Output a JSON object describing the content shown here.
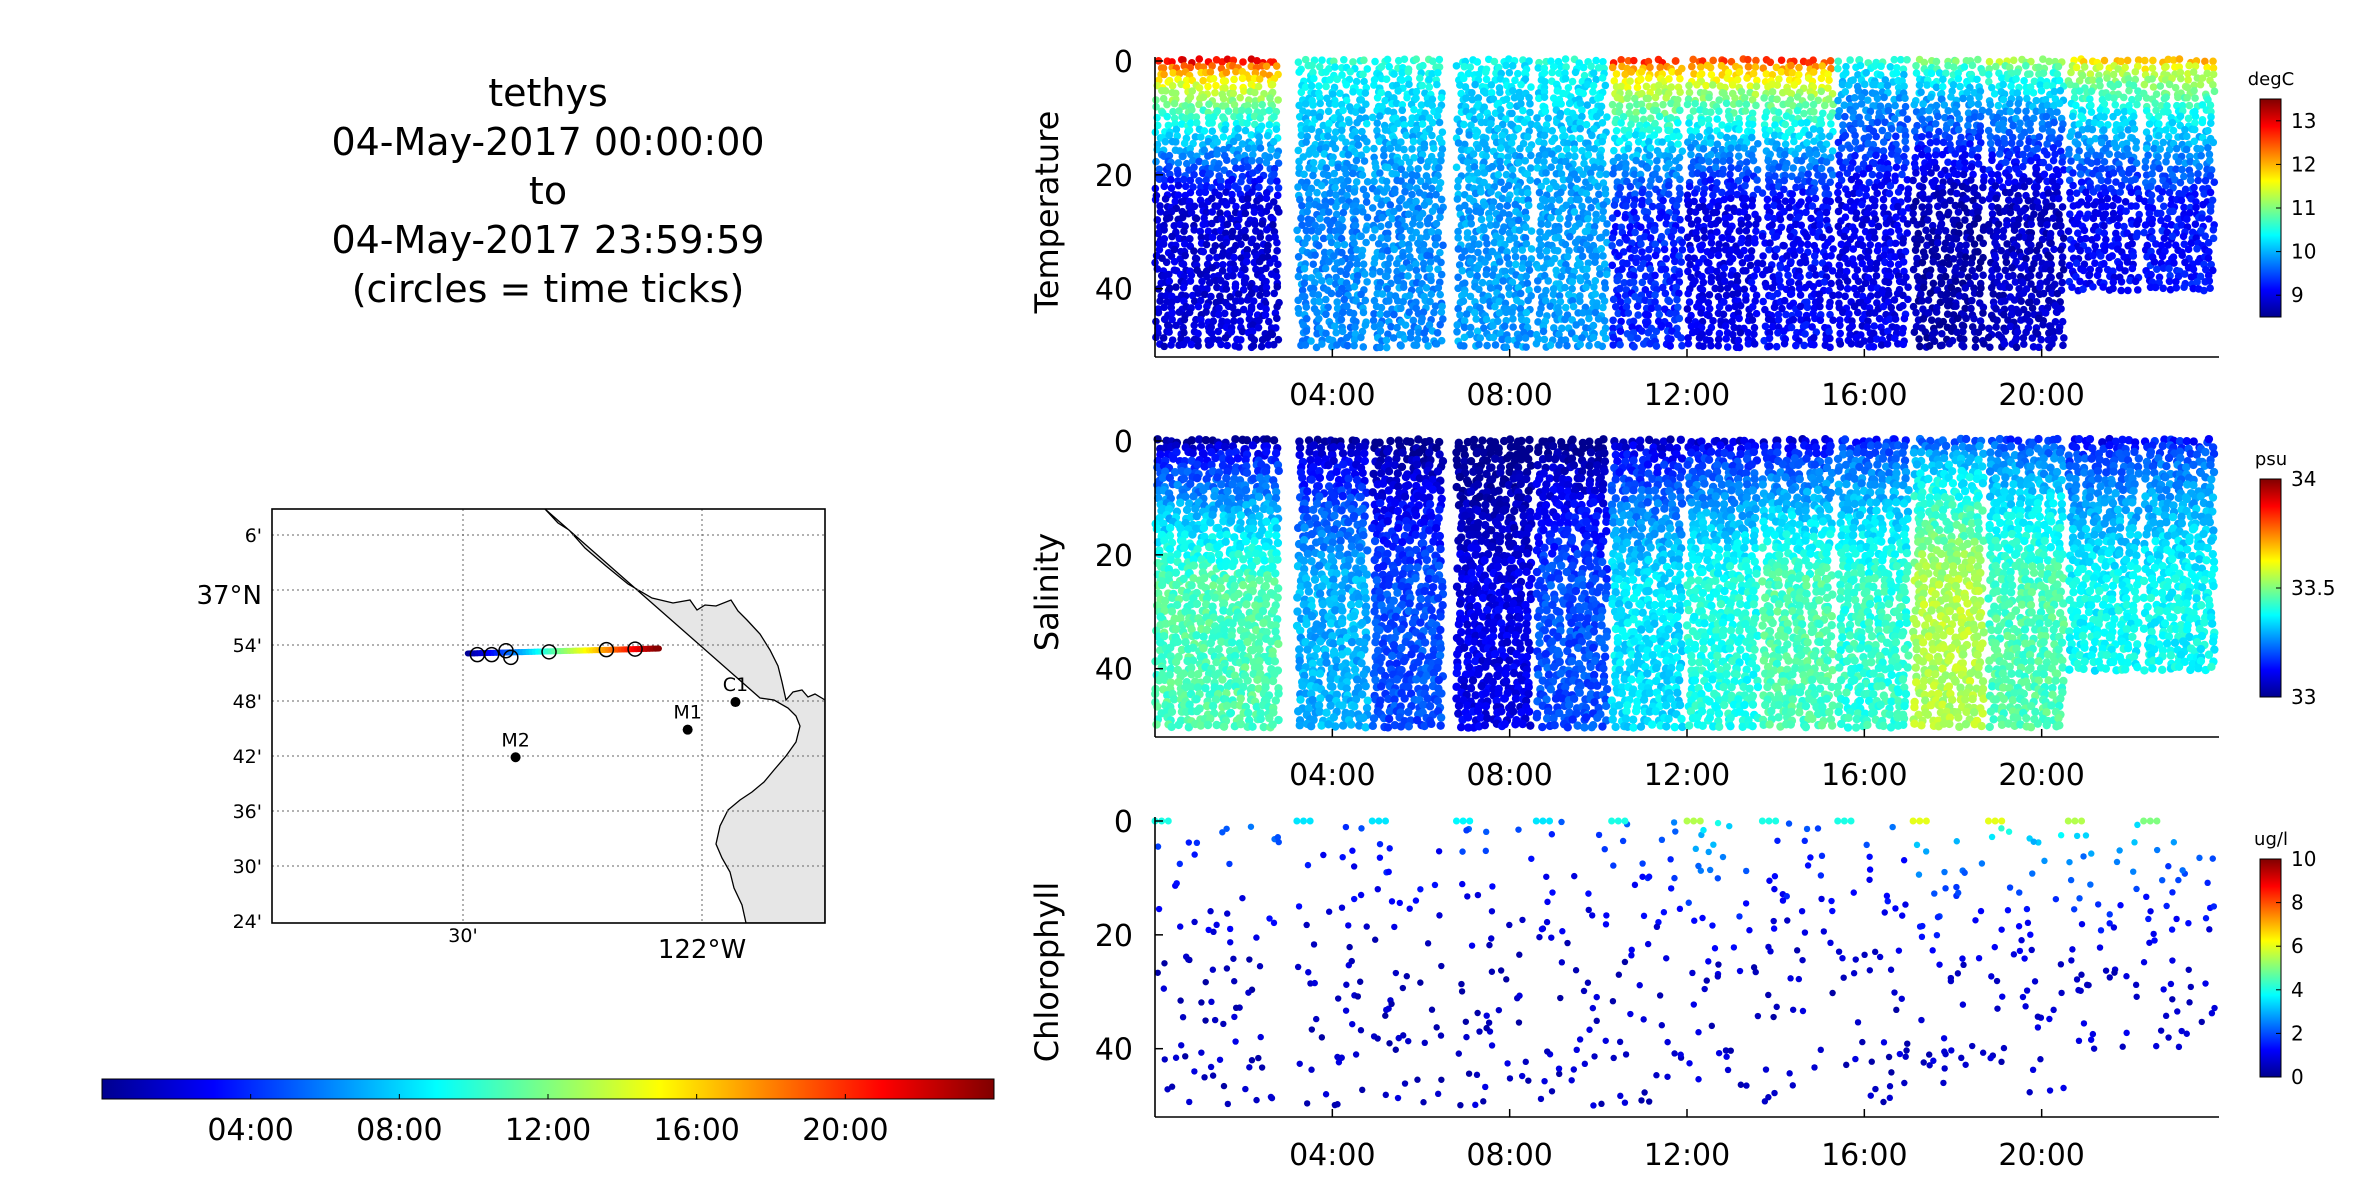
{
  "title_block": {
    "line1": "tethys",
    "line2": "04-May-2017 00:00:00",
    "line3": "to",
    "line4": "04-May-2017 23:59:59",
    "line5": "(circles = time ticks)"
  },
  "colormap": [
    "#00008f",
    "#0000ff",
    "#0080ff",
    "#00ffff",
    "#80ff80",
    "#ffff00",
    "#ff8000",
    "#ff0000",
    "#800000"
  ],
  "map": {
    "lat_ticks": [
      "6'",
      "37°N",
      "54'",
      "48'",
      "42'",
      "36'",
      "30'",
      "24'"
    ],
    "lon_ticks": [
      "30'",
      "122°W"
    ],
    "moorings": [
      {
        "name": "C1",
        "lon": -121.93,
        "lat": 36.797
      },
      {
        "name": "M1",
        "lon": -122.03,
        "lat": 36.747
      },
      {
        "name": "M2",
        "lon": -122.39,
        "lat": 36.697
      }
    ],
    "track": {
      "start": {
        "lon": -122.49,
        "lat": 36.885
      },
      "end": {
        "lon": -122.09,
        "lat": 36.894
      },
      "time_tick_circles": [
        {
          "lon": -122.47,
          "lat": 36.883
        },
        {
          "lon": -122.44,
          "lat": 36.883
        },
        {
          "lon": -122.41,
          "lat": 36.89
        },
        {
          "lon": -122.4,
          "lat": 36.878
        },
        {
          "lon": -122.32,
          "lat": 36.888
        },
        {
          "lon": -122.2,
          "lat": 36.892
        },
        {
          "lon": -122.14,
          "lat": 36.893
        }
      ]
    }
  },
  "time_colorbar": {
    "ticks": [
      "04:00",
      "08:00",
      "12:00",
      "16:00",
      "20:00"
    ]
  },
  "chart_data": [
    {
      "type": "scatter",
      "ylabel": "Temperature",
      "unit": "degC",
      "x_ticks": [
        "04:00",
        "08:00",
        "12:00",
        "16:00",
        "20:00"
      ],
      "xlim_hours": [
        0,
        24
      ],
      "y_ticks": [
        "0",
        "20",
        "40"
      ],
      "ylim_depth_m": [
        0,
        52
      ],
      "clim": [
        8.5,
        13.5
      ],
      "colorbar_ticks": [
        "13",
        "12",
        "11",
        "10",
        "9"
      ],
      "colorbar_values": [
        13,
        12,
        11,
        10,
        9
      ],
      "profiles": [
        {
          "t0": 0.0,
          "t1": 2.8,
          "maxd": 50,
          "surf": 12.9,
          "deep": 8.9
        },
        {
          "t0": 3.2,
          "t1": 4.8,
          "maxd": 50,
          "surf": 10.6,
          "deep": 9.8
        },
        {
          "t0": 4.9,
          "t1": 6.5,
          "maxd": 50,
          "surf": 10.6,
          "deep": 9.8
        },
        {
          "t0": 6.8,
          "t1": 8.5,
          "maxd": 50,
          "surf": 10.4,
          "deep": 9.9
        },
        {
          "t0": 8.6,
          "t1": 10.2,
          "maxd": 50,
          "surf": 10.5,
          "deep": 9.9
        },
        {
          "t0": 10.3,
          "t1": 11.9,
          "maxd": 50,
          "surf": 12.6,
          "deep": 9.3
        },
        {
          "t0": 12.0,
          "t1": 13.6,
          "maxd": 50,
          "surf": 12.6,
          "deep": 9.0
        },
        {
          "t0": 13.7,
          "t1": 15.3,
          "maxd": 50,
          "surf": 12.6,
          "deep": 9.1
        },
        {
          "t0": 15.4,
          "t1": 17.0,
          "maxd": 50,
          "surf": 10.6,
          "deep": 9.0
        },
        {
          "t0": 17.1,
          "t1": 18.7,
          "maxd": 50,
          "surf": 11.0,
          "deep": 8.7
        },
        {
          "t0": 18.8,
          "t1": 20.5,
          "maxd": 50,
          "surf": 11.2,
          "deep": 8.8
        },
        {
          "t0": 20.6,
          "t1": 22.2,
          "maxd": 40,
          "surf": 11.8,
          "deep": 9.1
        },
        {
          "t0": 22.3,
          "t1": 23.9,
          "maxd": 40,
          "surf": 12.0,
          "deep": 9.2
        }
      ]
    },
    {
      "type": "scatter",
      "ylabel": "Salinity",
      "unit": "psu",
      "x_ticks": [
        "04:00",
        "08:00",
        "12:00",
        "16:00",
        "20:00"
      ],
      "xlim_hours": [
        0,
        24
      ],
      "y_ticks": [
        "0",
        "20",
        "40"
      ],
      "ylim_depth_m": [
        0,
        52
      ],
      "clim": [
        33.0,
        34.0
      ],
      "colorbar_ticks": [
        "34",
        "33.5",
        "33"
      ],
      "colorbar_values": [
        34,
        33.5,
        33
      ],
      "profiles": [
        {
          "t0": 0.0,
          "t1": 2.8,
          "maxd": 50,
          "surf": 33.02,
          "deep": 33.45
        },
        {
          "t0": 3.2,
          "t1": 4.8,
          "maxd": 50,
          "surf": 33.02,
          "deep": 33.3
        },
        {
          "t0": 4.9,
          "t1": 6.5,
          "maxd": 50,
          "surf": 32.98,
          "deep": 33.2
        },
        {
          "t0": 6.8,
          "t1": 8.5,
          "maxd": 50,
          "surf": 32.96,
          "deep": 33.1
        },
        {
          "t0": 8.6,
          "t1": 10.2,
          "maxd": 50,
          "surf": 32.97,
          "deep": 33.2
        },
        {
          "t0": 10.3,
          "t1": 11.9,
          "maxd": 50,
          "surf": 33.05,
          "deep": 33.35
        },
        {
          "t0": 12.0,
          "t1": 13.6,
          "maxd": 50,
          "surf": 33.08,
          "deep": 33.4
        },
        {
          "t0": 13.7,
          "t1": 15.3,
          "maxd": 50,
          "surf": 33.08,
          "deep": 33.45
        },
        {
          "t0": 15.4,
          "t1": 17.0,
          "maxd": 50,
          "surf": 33.15,
          "deep": 33.42
        },
        {
          "t0": 17.1,
          "t1": 18.7,
          "maxd": 50,
          "surf": 33.2,
          "deep": 33.55
        },
        {
          "t0": 18.8,
          "t1": 20.5,
          "maxd": 50,
          "surf": 33.18,
          "deep": 33.45
        },
        {
          "t0": 20.6,
          "t1": 22.2,
          "maxd": 40,
          "surf": 33.12,
          "deep": 33.38
        },
        {
          "t0": 22.3,
          "t1": 23.9,
          "maxd": 40,
          "surf": 33.15,
          "deep": 33.38
        }
      ]
    },
    {
      "type": "scatter",
      "ylabel": "Chlorophyll",
      "unit": "ug/l",
      "x_ticks": [
        "04:00",
        "08:00",
        "12:00",
        "16:00",
        "20:00"
      ],
      "xlim_hours": [
        0,
        24
      ],
      "y_ticks": [
        "0",
        "20",
        "40"
      ],
      "ylim_depth_m": [
        0,
        52
      ],
      "clim": [
        0,
        10
      ],
      "colorbar_ticks": [
        "10",
        "8",
        "6",
        "4",
        "2",
        "0"
      ],
      "colorbar_values": [
        10,
        8,
        6,
        4,
        2,
        0
      ],
      "profiles": [
        {
          "t0": 0.0,
          "t1": 2.8,
          "maxd": 50,
          "surf": 2.5,
          "deep": 0.6
        },
        {
          "t0": 3.2,
          "t1": 4.8,
          "maxd": 50,
          "surf": 2.0,
          "deep": 0.6
        },
        {
          "t0": 4.9,
          "t1": 6.5,
          "maxd": 50,
          "surf": 2.0,
          "deep": 0.6
        },
        {
          "t0": 6.8,
          "t1": 8.5,
          "maxd": 50,
          "surf": 2.2,
          "deep": 0.6
        },
        {
          "t0": 8.6,
          "t1": 10.2,
          "maxd": 50,
          "surf": 2.0,
          "deep": 0.6
        },
        {
          "t0": 10.3,
          "t1": 11.9,
          "maxd": 50,
          "surf": 2.5,
          "deep": 0.6
        },
        {
          "t0": 12.0,
          "t1": 13.6,
          "maxd": 50,
          "surf": 4.0,
          "deep": 0.7
        },
        {
          "t0": 13.7,
          "t1": 15.3,
          "maxd": 50,
          "surf": 2.5,
          "deep": 0.6
        },
        {
          "t0": 15.4,
          "t1": 17.0,
          "maxd": 50,
          "surf": 2.5,
          "deep": 0.6
        },
        {
          "t0": 17.1,
          "t1": 18.7,
          "maxd": 50,
          "surf": 4.5,
          "deep": 0.7
        },
        {
          "t0": 18.8,
          "t1": 20.5,
          "maxd": 50,
          "surf": 4.5,
          "deep": 0.7
        },
        {
          "t0": 20.6,
          "t1": 22.2,
          "maxd": 40,
          "surf": 4.0,
          "deep": 0.7
        },
        {
          "t0": 22.3,
          "t1": 23.9,
          "maxd": 40,
          "surf": 3.5,
          "deep": 0.7
        }
      ]
    }
  ]
}
